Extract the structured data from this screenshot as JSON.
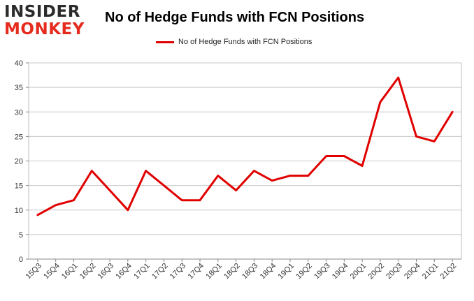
{
  "brand": {
    "line1": "INSIDER",
    "line2": "MONKEY"
  },
  "chart_data": {
    "type": "line",
    "title": "No of Hedge Funds with FCN Positions",
    "xlabel": "",
    "ylabel": "",
    "ylim": [
      0,
      40
    ],
    "yticks": [
      0,
      5,
      10,
      15,
      20,
      25,
      30,
      35,
      40
    ],
    "grid": true,
    "legend_position": "top-center",
    "categories": [
      "15Q3",
      "15Q4",
      "16Q1",
      "16Q2",
      "16Q3",
      "16Q4",
      "17Q1",
      "17Q2",
      "17Q3",
      "17Q4",
      "18Q1",
      "18Q2",
      "18Q3",
      "18Q4",
      "19Q1",
      "19Q2",
      "19Q3",
      "19Q4",
      "20Q1",
      "20Q2",
      "20Q3",
      "20Q4",
      "21Q1",
      "21Q2"
    ],
    "series": [
      {
        "name": "No of Hedge Funds with FCN Positions",
        "color": "#e00000",
        "values": [
          9,
          11,
          12,
          18,
          14,
          10,
          18,
          15,
          12,
          12,
          17,
          14,
          18,
          16,
          17,
          17,
          21,
          21,
          19,
          32,
          37,
          25,
          24,
          30
        ]
      }
    ]
  }
}
